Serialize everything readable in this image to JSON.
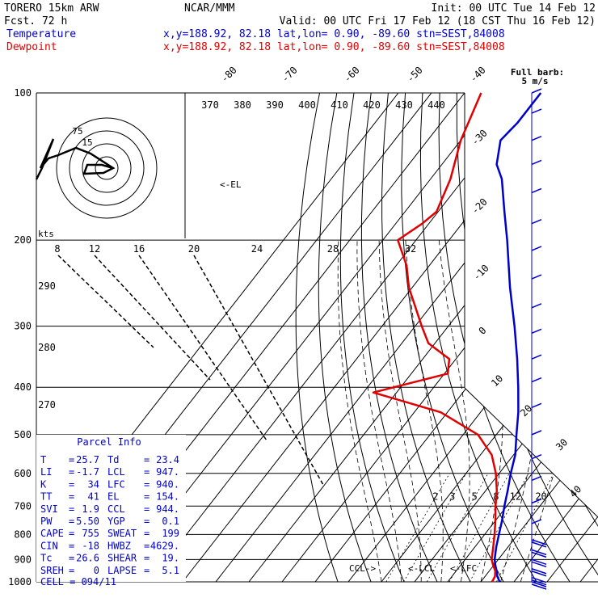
{
  "header": {
    "line1_left": "TORERO  15km ARW",
    "line1_center": "NCAR/MMM",
    "line1_right": "Init: 00 UTC Tue 14 Feb 12",
    "line2_left": "Fcst.   72 h",
    "line2_right": "Valid: 00 UTC Fri 17 Feb 12 (18 CST Thu 16 Feb 12)",
    "temp_label": "Temperature",
    "temp_info": "x,y=188.92, 82.18   lat,lon=  0.90, -89.60   stn=SEST,84008",
    "dew_label": "Dewpoint",
    "dew_info": "x,y=188.92, 82.18   lat,lon=  0.90, -89.60   stn=SEST,84008",
    "barb_label_1": "Full barb:",
    "barb_label_2": "5 m/s"
  },
  "colors": {
    "temperature": "#0000cc",
    "dewpoint": "#e00000",
    "grid": "#000000",
    "background": "#ffffff"
  },
  "chart_data": {
    "type": "line",
    "title": "",
    "ylabel": "",
    "xlabel": "",
    "y_scale": "log pressure (hPa)",
    "pressure_ticks": [
      "100",
      "200",
      "300",
      "400",
      "500",
      "600",
      "700",
      "800",
      "900",
      "1000"
    ],
    "isotherm_labels": [
      "-80",
      "-70",
      "-60",
      "-50",
      "-40",
      "-30",
      "-20",
      "-10",
      "0",
      "10",
      "20",
      "30",
      "40"
    ],
    "theta_labels": [
      "370",
      "380",
      "390",
      "400",
      "410",
      "420",
      "430",
      "440"
    ],
    "theta_left_labels": [
      "290",
      "280",
      "270"
    ],
    "mixing_ratio_labels": [
      "2",
      "3",
      "5",
      "8",
      "12",
      "20"
    ],
    "hodo_speed_labels": [
      "8",
      "12",
      "16",
      "20",
      "24",
      "28",
      "32"
    ],
    "hodo_unit": "kts",
    "hodo_ring_labels": [
      "75",
      "15"
    ],
    "level_markers": [
      "<-EL",
      "CCL->",
      "<-LCL",
      "<-LFC"
    ],
    "series": [
      {
        "name": "Temperature",
        "color": "#0000cc",
        "points": [
          {
            "p": 1000,
            "t": 25.7
          },
          {
            "p": 975,
            "t": 23.7
          },
          {
            "p": 950,
            "t": 22.2
          },
          {
            "p": 925,
            "t": 20.5
          },
          {
            "p": 900,
            "t": 18.9
          },
          {
            "p": 850,
            "t": 16.5
          },
          {
            "p": 800,
            "t": 14.3
          },
          {
            "p": 750,
            "t": 12.0
          },
          {
            "p": 700,
            "t": 9.3
          },
          {
            "p": 650,
            "t": 6.6
          },
          {
            "p": 600,
            "t": 3.5
          },
          {
            "p": 550,
            "t": 0.5
          },
          {
            "p": 500,
            "t": -3.9
          },
          {
            "p": 450,
            "t": -8.6
          },
          {
            "p": 400,
            "t": -14.5
          },
          {
            "p": 350,
            "t": -21.5
          },
          {
            "p": 300,
            "t": -30.0
          },
          {
            "p": 250,
            "t": -40.5
          },
          {
            "p": 200,
            "t": -52.5
          },
          {
            "p": 175,
            "t": -60.0
          },
          {
            "p": 150,
            "t": -68.5
          },
          {
            "p": 140,
            "t": -73.5
          },
          {
            "p": 125,
            "t": -78.0
          },
          {
            "p": 115,
            "t": -77.0
          },
          {
            "p": 100,
            "t": -77.0
          }
        ]
      },
      {
        "name": "Dewpoint",
        "color": "#e00000",
        "points": [
          {
            "p": 1000,
            "t": 23.4
          },
          {
            "p": 975,
            "t": 23.0
          },
          {
            "p": 950,
            "t": 21.8
          },
          {
            "p": 925,
            "t": 19.8
          },
          {
            "p": 900,
            "t": 18.0
          },
          {
            "p": 850,
            "t": 15.6
          },
          {
            "p": 800,
            "t": 13.0
          },
          {
            "p": 750,
            "t": 10.0
          },
          {
            "p": 700,
            "t": 6.6
          },
          {
            "p": 650,
            "t": 3.3
          },
          {
            "p": 600,
            "t": -1.0
          },
          {
            "p": 550,
            "t": -6.6
          },
          {
            "p": 500,
            "t": -15.5
          },
          {
            "p": 450,
            "t": -32.0
          },
          {
            "p": 410,
            "t": -57.0
          },
          {
            "p": 375,
            "t": -39.0
          },
          {
            "p": 350,
            "t": -42.0
          },
          {
            "p": 325,
            "t": -52.0
          },
          {
            "p": 300,
            "t": -58.0
          },
          {
            "p": 250,
            "t": -71.0
          },
          {
            "p": 225,
            "t": -77.0
          },
          {
            "p": 200,
            "t": -85.5
          },
          {
            "p": 185,
            "t": -82.0
          },
          {
            "p": 175,
            "t": -80.5
          },
          {
            "p": 150,
            "t": -84.0
          },
          {
            "p": 125,
            "t": -90.0
          },
          {
            "p": 100,
            "t": -95.0
          }
        ]
      }
    ],
    "wind_barbs_m_s": [
      {
        "p": 100,
        "speed": 5,
        "dir": 200
      },
      {
        "p": 110,
        "speed": 5,
        "dir": 90
      },
      {
        "p": 125,
        "speed": 5,
        "dir": 90
      },
      {
        "p": 140,
        "speed": 5,
        "dir": 90
      },
      {
        "p": 160,
        "speed": 5,
        "dir": 90
      },
      {
        "p": 185,
        "speed": 5,
        "dir": 90
      },
      {
        "p": 210,
        "speed": 5,
        "dir": 90
      },
      {
        "p": 240,
        "speed": 5,
        "dir": 90
      },
      {
        "p": 275,
        "speed": 5,
        "dir": 90
      },
      {
        "p": 310,
        "speed": 5,
        "dir": 90
      },
      {
        "p": 350,
        "speed": 5,
        "dir": 90
      },
      {
        "p": 390,
        "speed": 5,
        "dir": 90
      },
      {
        "p": 440,
        "speed": 5,
        "dir": 90
      },
      {
        "p": 500,
        "speed": 5,
        "dir": 90
      },
      {
        "p": 560,
        "speed": 5,
        "dir": 90
      },
      {
        "p": 620,
        "speed": 5,
        "dir": 90
      },
      {
        "p": 690,
        "speed": 5,
        "dir": 90
      },
      {
        "p": 760,
        "speed": 5,
        "dir": 90
      },
      {
        "p": 820,
        "speed": 10,
        "dir": 180
      },
      {
        "p": 860,
        "speed": 10,
        "dir": 180
      },
      {
        "p": 900,
        "speed": 10,
        "dir": 180
      },
      {
        "p": 940,
        "speed": 10,
        "dir": 180
      },
      {
        "p": 980,
        "speed": 10,
        "dir": 180
      },
      {
        "p": 1000,
        "speed": 10,
        "dir": 180
      }
    ]
  },
  "parcel_info": {
    "title": "Parcel Info",
    "rows": [
      {
        "l1": "T",
        "v1": "25.7",
        "l2": "Td",
        "v2": "23.4"
      },
      {
        "l1": "LI",
        "v1": "-1.7",
        "l2": "LCL",
        "v2": "947."
      },
      {
        "l1": "K",
        "v1": "34",
        "l2": "LFC",
        "v2": "940."
      },
      {
        "l1": "TT",
        "v1": "41",
        "l2": "EL",
        "v2": "154."
      },
      {
        "l1": "SVI",
        "v1": "1.9",
        "l2": "CCL",
        "v2": "944."
      },
      {
        "l1": "PW",
        "v1": "5.50",
        "l2": "YGP",
        "v2": "0.1"
      },
      {
        "l1": "CAPE",
        "v1": "755",
        "l2": "SWEAT",
        "v2": "199"
      },
      {
        "l1": "CIN",
        "v1": "-18",
        "l2": "HWBZ",
        "v2": "4629."
      },
      {
        "l1": "Tc",
        "v1": "26.6",
        "l2": "SHEAR",
        "v2": "19."
      },
      {
        "l1": "SREH",
        "v1": "0",
        "l2": "LAPSE",
        "v2": "5.1"
      }
    ],
    "cell": "CELL = 094/11"
  }
}
